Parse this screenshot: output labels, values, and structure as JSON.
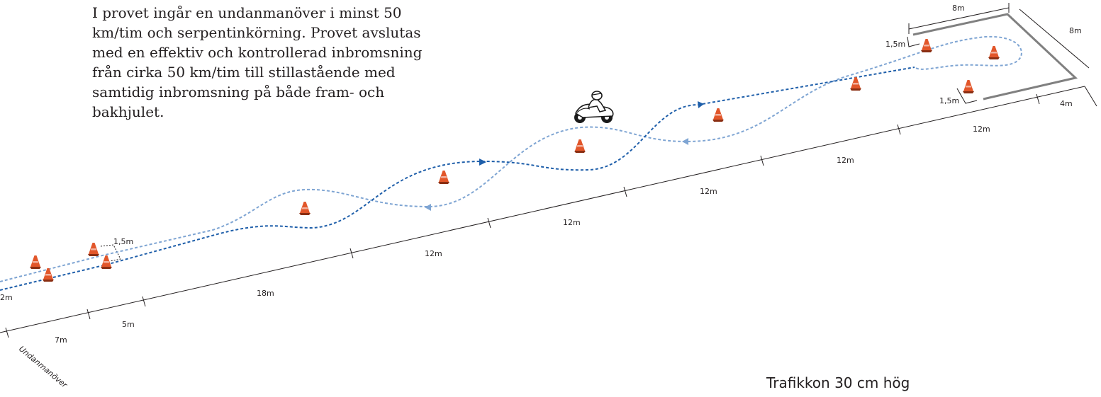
{
  "description": "I provet ingår en undanmanöver i minst 50 km/tim och serpentinkörning. Provet avslutas med en effektiv och kontrollerad inbromsning från cirka 50 km/tim till stillastående med samtidig inbromsning på både fram- och bakhjulet.",
  "legend": "Trafikkon 30 cm hög",
  "section_label": "Undanmanöver",
  "dimensions": {
    "d_2m": "2m",
    "d_7m": "7m",
    "d_5m": "5m",
    "d_18m": "18m",
    "d_12m_1": "12m",
    "d_12m_2": "12m",
    "d_12m_3": "12m",
    "d_12m_4": "12m",
    "d_12m_5": "12m",
    "d_gap_start": "1,5m",
    "d_gap_top": "1,5m",
    "d_gap_bottom": "1,5m",
    "d_box_width": "8m",
    "d_box_depth": "8m",
    "d_box_end": "4m"
  },
  "colors": {
    "cone": "#e2562a",
    "cone_base": "#8a2e12",
    "path_dark": "#1f5faa",
    "path_light": "#7fa5d3",
    "box_line": "#808080",
    "line": "#231f20"
  },
  "icons": [
    "traffic-cone-icon",
    "motorcycle-rider-icon"
  ]
}
